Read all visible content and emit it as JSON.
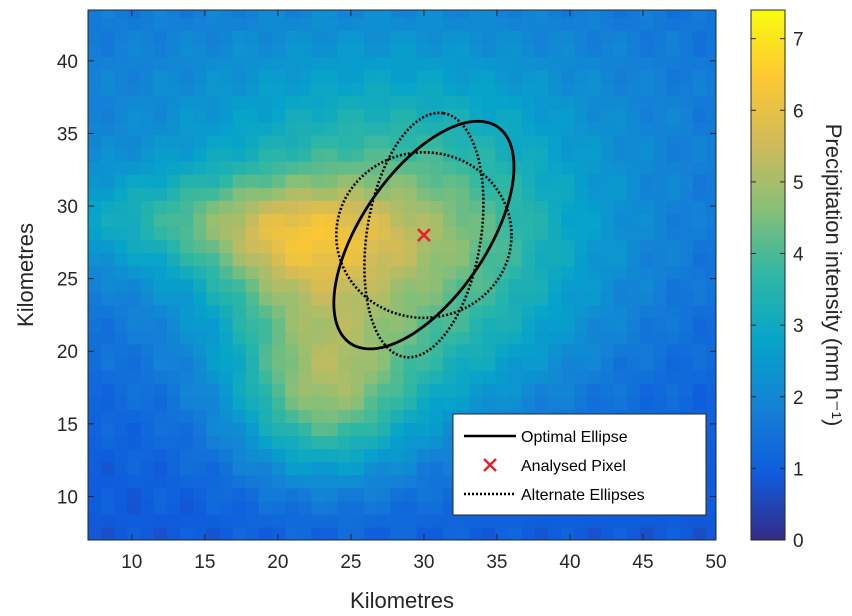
{
  "chart_data": {
    "type": "heatmap",
    "xlabel": "Kilometres",
    "ylabel": "Kilometres",
    "xlim": [
      7,
      50
    ],
    "ylim": [
      7,
      43.5
    ],
    "xticks": [
      10,
      15,
      20,
      25,
      30,
      35,
      40,
      45,
      50
    ],
    "yticks": [
      10,
      15,
      20,
      25,
      30,
      35,
      40
    ],
    "colorbar": {
      "label": "Precipitation intensity (mm h⁻¹)",
      "range": [
        0,
        7.4
      ],
      "ticks": [
        0,
        1,
        2,
        3,
        4,
        5,
        6,
        7
      ],
      "colormap": "parula"
    },
    "colormap_stops": [
      "#352a87",
      "#0f5cdd",
      "#1481d6",
      "#06a4ca",
      "#2eb7a4",
      "#87bf77",
      "#d1bb59",
      "#fec832",
      "#f9fb0e"
    ],
    "precip_blobs": [
      {
        "cx": 28,
        "cy": 26,
        "sx": 9,
        "sy": 8,
        "amp": 3.0
      },
      {
        "cx": 21,
        "cy": 26.5,
        "sx": 4,
        "sy": 3,
        "amp": 1.2
      },
      {
        "cx": 23,
        "cy": 17,
        "sx": 4,
        "sy": 4,
        "amp": 2.4
      },
      {
        "cx": 14,
        "cy": 29,
        "sx": 9,
        "sy": 2.5,
        "amp": 1.0
      },
      {
        "cx": 25,
        "cy": 36,
        "sx": 30,
        "sy": 12,
        "amp": 1.2
      }
    ],
    "analysed_pixel": {
      "x": 30,
      "y": 28
    },
    "optimal_ellipse": {
      "cx": 30,
      "cy": 28,
      "a": 9,
      "b": 4.3,
      "angle_deg": 56
    },
    "alternate_ellipses": [
      {
        "cx": 30,
        "cy": 28,
        "a": 8.5,
        "b": 3.9,
        "angle_deg": 81
      },
      {
        "cx": 30,
        "cy": 28,
        "a": 6,
        "b": 5.7,
        "angle_deg": 0
      }
    ],
    "legend": {
      "position": "bottom-right",
      "entries": [
        {
          "label": "Optimal Ellipse",
          "style": "solid"
        },
        {
          "label": "Analysed Pixel",
          "style": "marker-x"
        },
        {
          "label": "Alternate Ellipses",
          "style": "dotted"
        }
      ]
    },
    "colors": {
      "ellipse": "#000000",
      "marker": "#e8202a",
      "tick_text": "#262626"
    }
  }
}
